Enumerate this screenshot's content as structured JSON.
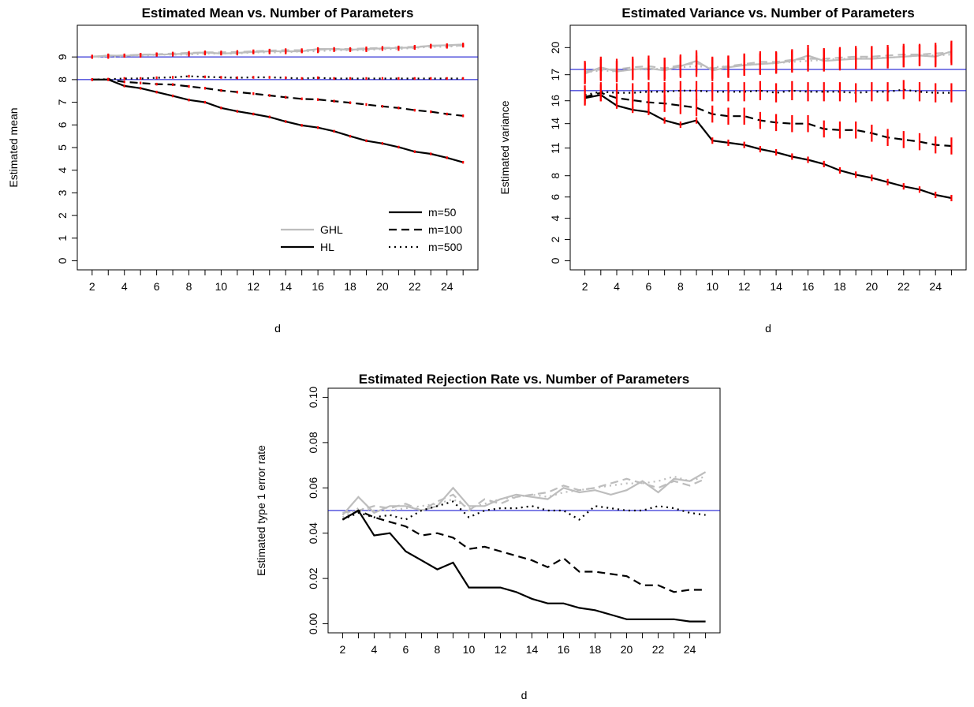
{
  "colors": {
    "ghl": "#bdbdbd",
    "hl": "#000000",
    "reference": "#0000cc",
    "errorbar": "#ff0000"
  },
  "legend": {
    "methods": [
      {
        "label": "GHL",
        "color": "#bdbdbd"
      },
      {
        "label": "HL",
        "color": "#000000"
      }
    ],
    "m_values": [
      {
        "label": "m=50",
        "dash": "solid"
      },
      {
        "label": "m=100",
        "dash": "dashed"
      },
      {
        "label": "m=500",
        "dash": "dotted"
      }
    ]
  },
  "chart_data": [
    {
      "type": "line",
      "title": "Estimated Mean vs. Number of Parameters",
      "xlabel": "d",
      "ylabel": "Estimated mean",
      "xlim": [
        2,
        25
      ],
      "ylim": [
        0,
        10
      ],
      "xticks": [
        2,
        4,
        6,
        8,
        10,
        12,
        14,
        16,
        18,
        20,
        22,
        24
      ],
      "yticks": [
        0,
        1,
        2,
        3,
        4,
        5,
        6,
        7,
        8,
        9
      ],
      "reference_lines": [
        8,
        9
      ],
      "error_bars": true,
      "legend_position": "bottom-right",
      "x": [
        2,
        3,
        4,
        5,
        6,
        7,
        8,
        9,
        10,
        11,
        12,
        13,
        14,
        15,
        16,
        17,
        18,
        19,
        20,
        21,
        22,
        23,
        24,
        25
      ],
      "series": [
        {
          "method": "GHL",
          "m": 50,
          "style": "solid",
          "err": 0.08,
          "values": [
            9.0,
            9.07,
            9.05,
            9.1,
            9.1,
            9.12,
            9.15,
            9.2,
            9.15,
            9.18,
            9.22,
            9.25,
            9.25,
            9.25,
            9.35,
            9.35,
            9.32,
            9.35,
            9.38,
            9.4,
            9.42,
            9.5,
            9.52,
            9.55
          ]
        },
        {
          "method": "GHL",
          "m": 100,
          "style": "dashed",
          "err": 0.08,
          "values": [
            9.02,
            9.05,
            9.07,
            9.1,
            9.12,
            9.15,
            9.18,
            9.2,
            9.2,
            9.22,
            9.25,
            9.28,
            9.3,
            9.3,
            9.32,
            9.35,
            9.35,
            9.38,
            9.4,
            9.42,
            9.45,
            9.48,
            9.5,
            9.5
          ]
        },
        {
          "method": "GHL",
          "m": 500,
          "style": "dotted",
          "err": 0.08,
          "values": [
            9.0,
            9.0,
            9.05,
            9.05,
            9.1,
            9.1,
            9.1,
            9.15,
            9.15,
            9.15,
            9.2,
            9.2,
            9.2,
            9.25,
            9.25,
            9.3,
            9.3,
            9.3,
            9.35,
            9.35,
            9.4,
            9.45,
            9.45,
            9.5
          ]
        },
        {
          "method": "HL",
          "m": 50,
          "style": "solid",
          "err": 0.06,
          "values": [
            8.0,
            8.0,
            7.72,
            7.62,
            7.45,
            7.28,
            7.1,
            7.0,
            6.75,
            6.6,
            6.48,
            6.35,
            6.15,
            5.98,
            5.88,
            5.72,
            5.5,
            5.3,
            5.18,
            5.02,
            4.82,
            4.72,
            4.55,
            4.35
          ]
        },
        {
          "method": "HL",
          "m": 100,
          "style": "dashed",
          "err": 0.06,
          "values": [
            8.0,
            8.0,
            7.9,
            7.85,
            7.8,
            7.78,
            7.7,
            7.62,
            7.52,
            7.45,
            7.38,
            7.3,
            7.22,
            7.15,
            7.12,
            7.05,
            6.98,
            6.9,
            6.82,
            6.75,
            6.65,
            6.58,
            6.48,
            6.4
          ]
        },
        {
          "method": "HL",
          "m": 500,
          "style": "dotted",
          "err": 0.06,
          "values": [
            8.0,
            8.02,
            8.05,
            8.05,
            8.08,
            8.1,
            8.15,
            8.12,
            8.1,
            8.08,
            8.1,
            8.1,
            8.08,
            8.05,
            8.08,
            8.05,
            8.05,
            8.05,
            8.05,
            8.05,
            8.05,
            8.05,
            8.05,
            8.05
          ]
        }
      ]
    },
    {
      "type": "line",
      "title": "Estimated Variance vs. Number of Parameters",
      "xlabel": "d",
      "ylabel": "Estimated variance",
      "xlim": [
        2,
        25
      ],
      "ylim": [
        0,
        21.3
      ],
      "xticks": [
        2,
        4,
        6,
        8,
        10,
        12,
        14,
        16,
        18,
        20,
        22,
        24
      ],
      "yticks": [
        0,
        2,
        4,
        6,
        8,
        11,
        14,
        16,
        17,
        20
      ],
      "ytick_positions": [
        0,
        2,
        4,
        6,
        8,
        10.6,
        12.9,
        15.05,
        17.5,
        20.05
      ],
      "reference_lines": [
        16,
        18
      ],
      "error_bars": true,
      "x": [
        2,
        3,
        4,
        5,
        6,
        7,
        8,
        9,
        10,
        11,
        12,
        13,
        14,
        15,
        16,
        17,
        18,
        19,
        20,
        21,
        22,
        23,
        24,
        25
      ],
      "series": [
        {
          "method": "GHL",
          "m": 50,
          "style": "solid",
          "err": 1.0,
          "values": [
            17.6,
            18.2,
            17.8,
            18.0,
            18.1,
            17.9,
            18.3,
            18.8,
            17.9,
            18.2,
            18.4,
            18.5,
            18.6,
            18.8,
            19.3,
            18.8,
            18.9,
            19.0,
            19.0,
            19.1,
            19.2,
            19.3,
            19.2,
            19.7
          ]
        },
        {
          "method": "GHL",
          "m": 100,
          "style": "dashed",
          "err": 1.0,
          "values": [
            17.8,
            18.0,
            18.0,
            18.2,
            18.3,
            18.1,
            18.4,
            18.6,
            18.1,
            18.3,
            18.5,
            18.7,
            18.7,
            18.9,
            19.0,
            19.0,
            19.1,
            19.2,
            19.2,
            19.3,
            19.4,
            19.4,
            19.5,
            19.6
          ]
        },
        {
          "method": "GHL",
          "m": 500,
          "style": "dotted",
          "err": 1.0,
          "values": [
            17.7,
            17.9,
            17.8,
            18.0,
            18.0,
            18.1,
            18.2,
            18.3,
            18.2,
            18.3,
            18.4,
            18.5,
            18.6,
            18.7,
            18.8,
            18.9,
            19.0,
            19.0,
            19.1,
            19.1,
            19.2,
            19.3,
            19.3,
            19.4
          ]
        },
        {
          "method": "HL",
          "m": 50,
          "style": "solid",
          "err": 0.3,
          "values": [
            15.3,
            15.6,
            14.6,
            14.2,
            14.0,
            13.2,
            12.8,
            13.2,
            11.3,
            11.1,
            10.9,
            10.5,
            10.2,
            9.8,
            9.5,
            9.1,
            8.5,
            8.1,
            7.8,
            7.4,
            7.0,
            6.7,
            6.2,
            5.9
          ]
        },
        {
          "method": "HL",
          "m": 100,
          "style": "dashed",
          "err": 0.8,
          "values": [
            15.4,
            15.8,
            15.3,
            15.1,
            14.9,
            14.8,
            14.6,
            14.4,
            13.8,
            13.6,
            13.6,
            13.2,
            13.0,
            12.9,
            12.9,
            12.4,
            12.3,
            12.3,
            12.0,
            11.6,
            11.4,
            11.2,
            10.9,
            10.8
          ]
        },
        {
          "method": "HL",
          "m": 500,
          "style": "dotted",
          "err": 0.9,
          "values": [
            15.6,
            15.9,
            15.8,
            15.8,
            15.9,
            15.9,
            16.0,
            16.0,
            15.9,
            15.9,
            15.9,
            16.0,
            15.8,
            16.0,
            15.9,
            15.9,
            15.9,
            15.8,
            15.9,
            15.9,
            16.1,
            15.9,
            15.8,
            15.8
          ]
        }
      ]
    },
    {
      "type": "line",
      "title": "Estimated Rejection Rate vs. Number of Parameters",
      "xlabel": "d",
      "ylabel": "Estimated type 1 error rate",
      "xlim": [
        2,
        25
      ],
      "ylim": [
        0,
        0.1
      ],
      "xticks": [
        2,
        4,
        6,
        8,
        10,
        12,
        14,
        16,
        18,
        20,
        22,
        24
      ],
      "yticks": [
        "0.00",
        "0.02",
        "0.04",
        "0.06",
        "0.08",
        "0.10"
      ],
      "reference_lines": [
        0.05
      ],
      "error_bars": false,
      "x": [
        2,
        3,
        4,
        5,
        6,
        7,
        8,
        9,
        10,
        11,
        12,
        13,
        14,
        15,
        16,
        17,
        18,
        19,
        20,
        21,
        22,
        23,
        24,
        25
      ],
      "series": [
        {
          "method": "GHL",
          "m": 50,
          "style": "solid",
          "values": [
            0.048,
            0.056,
            0.049,
            0.052,
            0.052,
            0.05,
            0.052,
            0.06,
            0.052,
            0.052,
            0.055,
            0.057,
            0.056,
            0.055,
            0.06,
            0.058,
            0.059,
            0.057,
            0.059,
            0.063,
            0.058,
            0.064,
            0.063,
            0.067
          ]
        },
        {
          "method": "GHL",
          "m": 100,
          "style": "dashed",
          "values": [
            0.049,
            0.05,
            0.052,
            0.051,
            0.053,
            0.05,
            0.054,
            0.057,
            0.05,
            0.055,
            0.053,
            0.056,
            0.057,
            0.058,
            0.061,
            0.059,
            0.06,
            0.062,
            0.064,
            0.062,
            0.06,
            0.063,
            0.061,
            0.064
          ]
        },
        {
          "method": "GHL",
          "m": 500,
          "style": "dotted",
          "values": [
            0.047,
            0.051,
            0.05,
            0.05,
            0.051,
            0.052,
            0.053,
            0.055,
            0.051,
            0.053,
            0.055,
            0.056,
            0.057,
            0.056,
            0.058,
            0.059,
            0.06,
            0.061,
            0.062,
            0.062,
            0.063,
            0.065,
            0.063,
            0.065
          ]
        },
        {
          "method": "HL",
          "m": 50,
          "style": "solid",
          "values": [
            0.046,
            0.05,
            0.039,
            0.04,
            0.032,
            0.028,
            0.024,
            0.027,
            0.016,
            0.016,
            0.016,
            0.014,
            0.011,
            0.009,
            0.009,
            0.007,
            0.006,
            0.004,
            0.002,
            0.002,
            0.002,
            0.002,
            0.001,
            0.001
          ]
        },
        {
          "method": "HL",
          "m": 100,
          "style": "dashed",
          "values": [
            0.046,
            0.05,
            0.047,
            0.045,
            0.043,
            0.039,
            0.04,
            0.038,
            0.033,
            0.034,
            0.032,
            0.03,
            0.028,
            0.025,
            0.029,
            0.023,
            0.023,
            0.022,
            0.021,
            0.017,
            0.017,
            0.014,
            0.015,
            0.015
          ]
        },
        {
          "method": "HL",
          "m": 500,
          "style": "dotted",
          "values": [
            0.046,
            0.049,
            0.047,
            0.048,
            0.046,
            0.05,
            0.052,
            0.054,
            0.047,
            0.05,
            0.051,
            0.051,
            0.052,
            0.05,
            0.05,
            0.046,
            0.052,
            0.051,
            0.05,
            0.05,
            0.052,
            0.051,
            0.049,
            0.048
          ]
        }
      ]
    }
  ]
}
